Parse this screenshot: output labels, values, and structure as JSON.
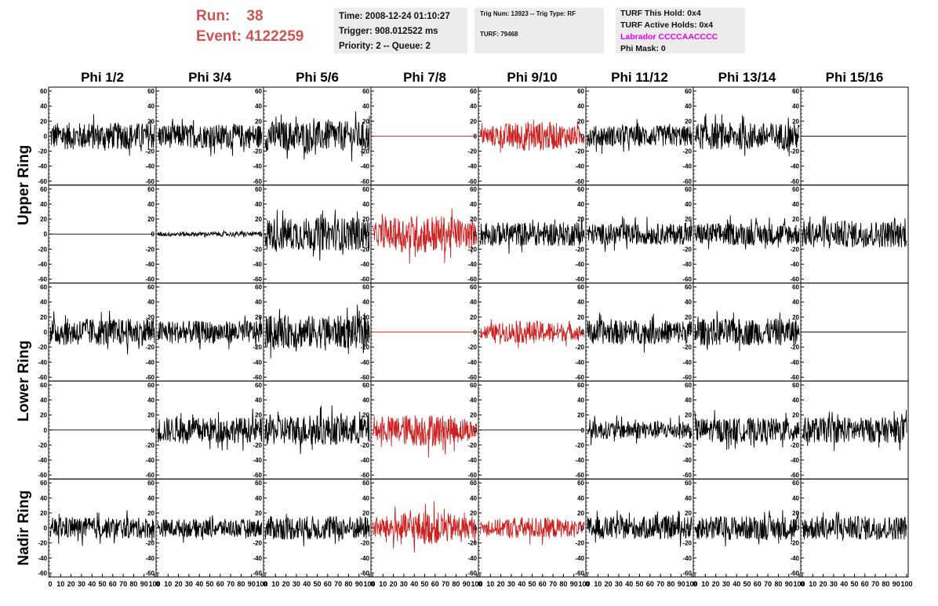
{
  "header": {
    "run_label": "Run:",
    "run_value": "38",
    "event_label": "Event:",
    "event_value": "4122259"
  },
  "info_time": {
    "time": "Time: 2008-12-24 01:10:27",
    "trigger": "Trigger: 908.012522 ms",
    "priority": "Priority: 2 -- Queue: 2"
  },
  "info_trig": {
    "trig": "Trig Num: 13923 -- Trig Type: RF",
    "turf": "TURF: 79468"
  },
  "info_turf": {
    "this_hold": "TURF This Hold: 0x4",
    "active_holds": "TURF Active Holds: 0x4",
    "labrador": "Labrador CCCCAACCCC",
    "phi_mask": "Phi Mask: 0"
  },
  "colors": {
    "header_red": "#cc5555",
    "trace_black": "#000000",
    "trace_red": "#cc2222",
    "labrador_magenta": "#ee00ee",
    "info_bg": "#ececec"
  },
  "chart_data": {
    "type": "line",
    "columns": [
      "Phi 1/2",
      "Phi 3/4",
      "Phi 5/6",
      "Phi 7/8",
      "Phi 9/10",
      "Phi 11/12",
      "Phi 13/14",
      "Phi 15/16"
    ],
    "ring_labels": [
      "Upper Ring",
      "Lower Ring",
      "Nadir Ring"
    ],
    "ylim": [
      -60,
      60
    ],
    "xlim": [
      0,
      100
    ],
    "y_ticks": [
      "60",
      "40",
      "20",
      "0",
      "-20",
      "-40",
      "-60"
    ],
    "x_ticks": [
      "0",
      "10",
      "20",
      "30",
      "40",
      "50",
      "60",
      "70",
      "80",
      "90",
      "100"
    ],
    "grid": false,
    "panel_rows": [
      [
        {
          "amp": 18,
          "red": false
        },
        {
          "amp": 16,
          "red": false
        },
        {
          "amp": 20,
          "red": false
        },
        {
          "amp": 0,
          "red": true
        },
        {
          "amp": 20,
          "red": true
        },
        {
          "amp": 14,
          "red": false
        },
        {
          "amp": 18,
          "red": false
        },
        {
          "amp": 0,
          "red": false
        }
      ],
      [
        {
          "amp": 0,
          "red": false
        },
        {
          "amp": 3,
          "red": false
        },
        {
          "amp": 22,
          "red": false
        },
        {
          "amp": 26,
          "red": true
        },
        {
          "amp": 16,
          "red": false
        },
        {
          "amp": 14,
          "red": false
        },
        {
          "amp": 15,
          "red": false
        },
        {
          "amp": 18,
          "red": false
        }
      ],
      [
        {
          "amp": 18,
          "red": false
        },
        {
          "amp": 15,
          "red": false
        },
        {
          "amp": 22,
          "red": false
        },
        {
          "amp": 0,
          "red": true
        },
        {
          "amp": 15,
          "red": true
        },
        {
          "amp": 16,
          "red": false
        },
        {
          "amp": 18,
          "red": false
        },
        {
          "amp": 0,
          "red": false
        }
      ],
      [
        {
          "amp": 0,
          "red": false
        },
        {
          "amp": 17,
          "red": false
        },
        {
          "amp": 20,
          "red": false
        },
        {
          "amp": 22,
          "red": true
        },
        {
          "amp": 0,
          "red": false
        },
        {
          "amp": 12,
          "red": false
        },
        {
          "amp": 16,
          "red": false
        },
        {
          "amp": 17,
          "red": false
        }
      ],
      [
        {
          "amp": 14,
          "red": false
        },
        {
          "amp": 12,
          "red": false
        },
        {
          "amp": 16,
          "red": false
        },
        {
          "amp": 22,
          "red": true
        },
        {
          "amp": 15,
          "red": true
        },
        {
          "amp": 15,
          "red": false
        },
        {
          "amp": 16,
          "red": false
        },
        {
          "amp": 16,
          "red": false
        }
      ]
    ]
  }
}
